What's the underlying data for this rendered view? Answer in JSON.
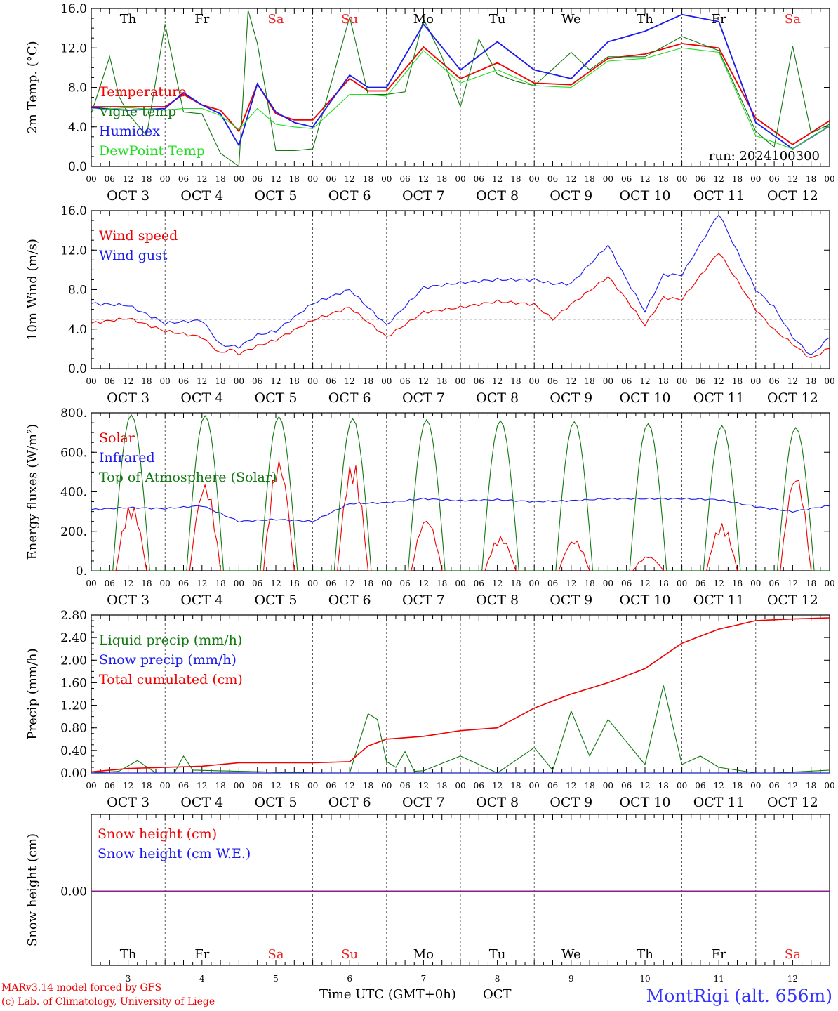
{
  "run_label": "run: 2024100300",
  "footer": {
    "credit_line1": "MARv3.14 model forced by GFS",
    "credit_line2": "(c) Lab. of Climatology, University of Liege",
    "station": "MontRigi (alt. 656m)",
    "xaxis_title": "Time UTC (GMT+0h)",
    "month": "OCT"
  },
  "days": [
    "Th",
    "Fr",
    "Sa",
    "Su",
    "Mo",
    "Tu",
    "We",
    "Th",
    "Fr",
    "Sa"
  ],
  "weekend_days": [
    2,
    3,
    9
  ],
  "date_labels": [
    "OCT  3",
    "OCT  4",
    "OCT  5",
    "OCT  6",
    "OCT  7",
    "OCT  8",
    "OCT  9",
    "OCT 10",
    "OCT 11",
    "OCT 12"
  ],
  "day_numbers": [
    "3",
    "4",
    "5",
    "6",
    "7",
    "8",
    "9",
    "10",
    "11",
    "12"
  ],
  "hour_ticks": [
    "00",
    "06",
    "12",
    "18"
  ],
  "colors": {
    "red": "#ee0000",
    "blue": "#1a1aee",
    "green": "#117711",
    "lightgreen": "#22dd22",
    "purple": "#882288",
    "weekend": "#ee2222"
  },
  "chart_data": [
    {
      "type": "line",
      "ylabel": "2m Temp. (°C)",
      "ylim": [
        0,
        18
      ],
      "yticks": [
        "0.0",
        "4.0",
        "8.0",
        "12.0",
        "16.0"
      ],
      "x_unit": "hours since OCT 3 00 UTC",
      "series": [
        {
          "name": "Temperature",
          "color": "red",
          "x": [
            0,
            12,
            24,
            30,
            36,
            42,
            48,
            54,
            60,
            66,
            72,
            84,
            90,
            96,
            108,
            120,
            132,
            144,
            156,
            168,
            180,
            192,
            204,
            216,
            228,
            240
          ],
          "y": [
            6.8,
            6.8,
            6.8,
            8.2,
            7.0,
            6.4,
            4.0,
            9.4,
            6.0,
            5.3,
            5.3,
            10.0,
            8.6,
            8.6,
            13.6,
            10.0,
            11.8,
            9.5,
            9.3,
            12.3,
            12.8,
            14.0,
            13.5,
            5.5,
            2.5,
            5.2
          ]
        },
        {
          "name": "Vigne temp",
          "color": "green",
          "x": [
            0,
            6,
            9,
            12,
            18,
            24,
            30,
            36,
            42,
            48,
            51,
            54,
            57,
            60,
            66,
            72,
            84,
            90,
            96,
            102,
            108,
            114,
            120,
            126,
            132,
            138,
            144,
            156,
            162,
            168,
            180,
            192,
            204,
            216,
            222,
            228,
            234,
            240
          ],
          "y": [
            6.0,
            12.5,
            8.0,
            6.0,
            3.5,
            16.2,
            6.2,
            6.0,
            1.5,
            0.0,
            17.8,
            14.0,
            8.0,
            1.8,
            1.8,
            2.0,
            17.0,
            8.2,
            8.2,
            8.5,
            16.8,
            12.5,
            6.8,
            14.5,
            10.5,
            9.7,
            9.2,
            13.0,
            11.0,
            12.5,
            12.5,
            14.8,
            13.2,
            4.0,
            2.2,
            13.7,
            3.8,
            4.8
          ]
        },
        {
          "name": "Humidex",
          "color": "blue",
          "x": [
            0,
            12,
            24,
            30,
            36,
            42,
            48,
            54,
            60,
            66,
            72,
            84,
            90,
            96,
            108,
            120,
            132,
            144,
            156,
            168,
            180,
            192,
            204,
            216,
            228,
            240
          ],
          "y": [
            6.7,
            6.4,
            6.6,
            8.4,
            7.0,
            6.0,
            2.4,
            9.4,
            6.2,
            5.0,
            4.5,
            10.4,
            9.0,
            9.0,
            16.2,
            11.0,
            14.2,
            11.0,
            10.0,
            14.2,
            15.4,
            17.3,
            16.5,
            5.0,
            2.0,
            4.6
          ]
        },
        {
          "name": "DewPoint Temp",
          "color": "lightgreen",
          "x": [
            0,
            12,
            24,
            30,
            36,
            42,
            48,
            54,
            60,
            66,
            72,
            84,
            90,
            96,
            108,
            120,
            132,
            144,
            156,
            168,
            180,
            192,
            204,
            216,
            228,
            240
          ],
          "y": [
            6.4,
            6.7,
            6.4,
            6.6,
            6.6,
            5.8,
            4.2,
            6.6,
            4.8,
            4.5,
            4.3,
            8.2,
            8.2,
            8.0,
            13.2,
            9.5,
            11.0,
            9.2,
            9.0,
            12.0,
            12.3,
            13.5,
            13.0,
            3.5,
            2.0,
            4.6
          ]
        }
      ]
    },
    {
      "type": "line",
      "ylabel": "10m Wind (m/s)",
      "ylim": [
        0,
        16.0
      ],
      "yticks": [
        "0.0",
        "4.0",
        "8.0",
        "12.0",
        "16.0"
      ],
      "reference_line": 5.0,
      "series": [
        {
          "name": "Wind speed",
          "color": "red",
          "x": [
            0,
            12,
            24,
            36,
            42,
            45,
            48,
            54,
            60,
            72,
            84,
            96,
            108,
            120,
            132,
            144,
            150,
            156,
            168,
            174,
            180,
            186,
            192,
            204,
            216,
            222,
            228,
            234,
            240
          ],
          "y": [
            4.6,
            5.1,
            3.8,
            3.2,
            1.5,
            2.0,
            1.5,
            2.3,
            2.9,
            4.9,
            6.2,
            3.2,
            5.7,
            6.2,
            6.8,
            6.5,
            5.0,
            6.5,
            9.3,
            7.0,
            4.4,
            7.2,
            7.0,
            11.8,
            6.0,
            3.9,
            2.5,
            1.0,
            2.1
          ]
        },
        {
          "name": "Wind gust",
          "color": "blue",
          "x": [
            0,
            12,
            24,
            36,
            42,
            48,
            54,
            60,
            72,
            84,
            96,
            108,
            120,
            132,
            144,
            150,
            156,
            168,
            174,
            180,
            186,
            192,
            204,
            216,
            222,
            228,
            234,
            240
          ],
          "y": [
            6.6,
            6.4,
            4.6,
            4.9,
            2.4,
            2.2,
            3.4,
            3.8,
            6.6,
            8.0,
            4.4,
            8.2,
            8.7,
            9.0,
            9.0,
            8.6,
            8.6,
            12.5,
            9.0,
            5.8,
            9.5,
            9.5,
            15.7,
            8.0,
            6.2,
            3.2,
            1.3,
            3.2
          ]
        }
      ]
    },
    {
      "type": "line",
      "ylabel": "Energy fluxes (W/m²)",
      "ylim": [
        0,
        800
      ],
      "yticks": [
        "0.",
        "200.",
        "400.",
        "600.",
        "800."
      ],
      "series": [
        {
          "name": "Solar",
          "color": "red",
          "day_peaks": [
            340,
            450,
            570,
            560,
            270,
            175,
            160,
            75,
            240,
            500
          ]
        },
        {
          "name": "Infrared",
          "color": "blue",
          "x": [
            0,
            12,
            24,
            36,
            48,
            60,
            72,
            84,
            96,
            108,
            120,
            132,
            144,
            156,
            168,
            180,
            192,
            204,
            216,
            228,
            240
          ],
          "y": [
            310,
            320,
            315,
            330,
            250,
            260,
            250,
            340,
            345,
            365,
            355,
            360,
            350,
            355,
            365,
            365,
            365,
            360,
            325,
            300,
            330
          ]
        },
        {
          "name": "Top of Atmosphere (Solar)",
          "color": "green",
          "day_peaks": [
            790,
            785,
            780,
            770,
            765,
            760,
            755,
            745,
            735,
            725
          ]
        }
      ]
    },
    {
      "type": "line",
      "ylabel": "Precip (mm/h)",
      "ylim": [
        0,
        2.8
      ],
      "yticks": [
        "0.00",
        "0.40",
        "0.80",
        "1.20",
        "1.60",
        "2.00",
        "2.40",
        "2.80"
      ],
      "series": [
        {
          "name": "Liquid precip (mm/h)",
          "color": "green",
          "x": [
            0,
            9,
            15,
            21,
            27,
            30,
            33,
            72,
            84,
            90,
            93,
            96,
            99,
            102,
            105,
            108,
            120,
            132,
            144,
            150,
            156,
            162,
            168,
            174,
            180,
            186,
            192,
            198,
            204,
            216,
            222,
            240
          ],
          "y": [
            0,
            0.03,
            0.22,
            0,
            0,
            0.3,
            0.05,
            0,
            0,
            1.05,
            0.95,
            0.2,
            0.1,
            0.38,
            0.03,
            0.04,
            0.3,
            0,
            0.45,
            0.05,
            1.1,
            0.3,
            0.95,
            0.55,
            0.15,
            1.55,
            0.15,
            0.3,
            0.1,
            0,
            0,
            0.05
          ]
        },
        {
          "name": "Snow precip (mm/h)",
          "color": "blue",
          "x": [
            0,
            240
          ],
          "y": [
            0,
            0
          ]
        },
        {
          "name": "Total cumulated (cm)",
          "color": "red",
          "x": [
            0,
            12,
            24,
            36,
            48,
            72,
            84,
            90,
            96,
            108,
            120,
            132,
            144,
            156,
            168,
            180,
            192,
            204,
            216,
            228,
            240
          ],
          "y": [
            0.02,
            0.08,
            0.1,
            0.12,
            0.18,
            0.18,
            0.2,
            0.48,
            0.6,
            0.65,
            0.75,
            0.8,
            1.15,
            1.4,
            1.6,
            1.85,
            2.3,
            2.55,
            2.7,
            2.73,
            2.75
          ]
        }
      ]
    },
    {
      "type": "line",
      "ylabel": "Snow height (cm)",
      "yticks": [
        "0.00"
      ],
      "series": [
        {
          "name": "Snow height (cm)",
          "color": "red",
          "x": [
            0,
            240
          ],
          "y": [
            0,
            0
          ]
        },
        {
          "name": "Snow height (cm W.E.)",
          "color": "blue",
          "x": [
            0,
            240
          ],
          "y": [
            0,
            0
          ]
        }
      ]
    }
  ]
}
